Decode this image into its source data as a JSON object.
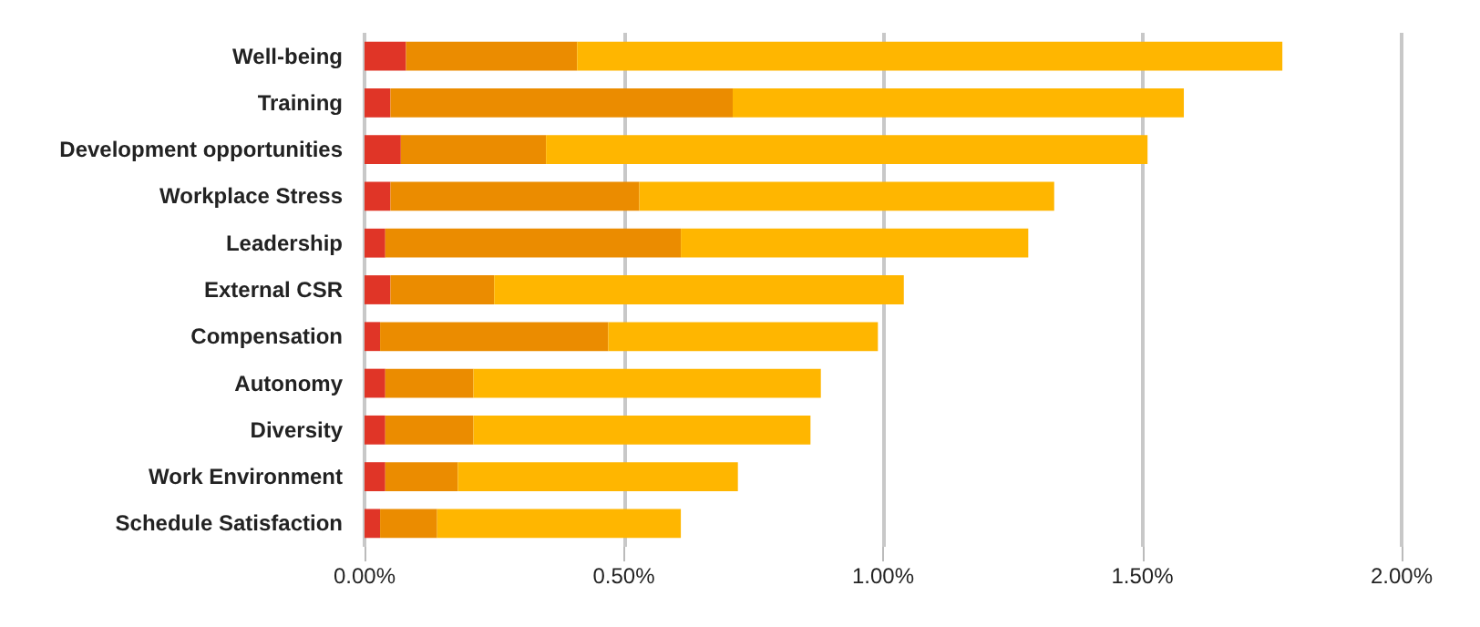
{
  "chart_data": {
    "type": "bar",
    "orientation": "horizontal",
    "stacked": true,
    "grid": "x",
    "categories": [
      "Well-being",
      "Training",
      "Development opportunities",
      "Workplace Stress",
      "Leadership",
      "External CSR",
      "Compensation",
      "Autonomy",
      "Diversity",
      "Work Environment",
      "Schedule Satisfaction"
    ],
    "series": [
      {
        "color": "#e03527",
        "values": [
          0.08,
          0.05,
          0.07,
          0.05,
          0.04,
          0.05,
          0.03,
          0.04,
          0.04,
          0.04,
          0.03
        ]
      },
      {
        "color": "#eb8c00",
        "values": [
          0.33,
          0.66,
          0.28,
          0.48,
          0.57,
          0.2,
          0.44,
          0.17,
          0.17,
          0.14,
          0.11
        ]
      },
      {
        "color": "#ffb600",
        "values": [
          1.36,
          0.87,
          1.16,
          0.8,
          0.67,
          0.79,
          0.52,
          0.67,
          0.65,
          0.54,
          0.47
        ]
      }
    ],
    "xlim": [
      0,
      2
    ],
    "xticks": [
      {
        "value": 0,
        "label": "0.00%"
      },
      {
        "value": 0.5,
        "label": "0.50%"
      },
      {
        "value": 1,
        "label": "1.00%"
      },
      {
        "value": 1.5,
        "label": "1.50%"
      },
      {
        "value": 2,
        "label": "2.00%"
      }
    ]
  }
}
